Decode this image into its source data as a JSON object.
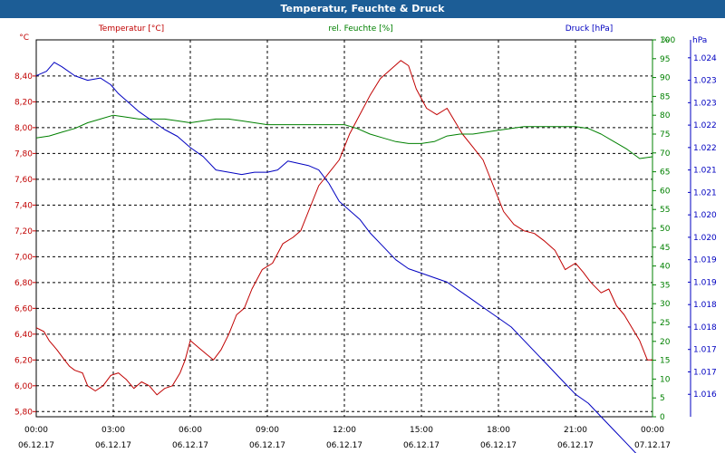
{
  "title": "Temperatur, Feuchte & Druck",
  "chart_data": {
    "type": "line",
    "title": "Temperatur, Feuchte & Druck",
    "grid": true,
    "x_ticks": [
      {
        "time": "00:00",
        "date": "06.12.17"
      },
      {
        "time": "03:00",
        "date": "06.12.17"
      },
      {
        "time": "06:00",
        "date": "06.12.17"
      },
      {
        "time": "09:00",
        "date": "06.12.17"
      },
      {
        "time": "12:00",
        "date": "06.12.17"
      },
      {
        "time": "15:00",
        "date": "06.12.17"
      },
      {
        "time": "18:00",
        "date": "06.12.17"
      },
      {
        "time": "21:00",
        "date": "06.12.17"
      },
      {
        "time": "00:00",
        "date": "07.12.17"
      }
    ],
    "xlim_hours": [
      0,
      24
    ],
    "axes": {
      "temperature": {
        "label": "Temperatur [°C]",
        "unit": "°C",
        "color": "#c00000",
        "ylim": [
          5.76,
          8.68
        ],
        "ticks": [
          "8,40",
          "8,20",
          "8,00",
          "7,80",
          "7,60",
          "7,40",
          "7,20",
          "7,00",
          "6,80",
          "6,60",
          "6,40",
          "6,20",
          "6,00",
          "5,80"
        ],
        "tick_values": [
          8.4,
          8.2,
          8.0,
          7.8,
          7.6,
          7.4,
          7.2,
          7.0,
          6.8,
          6.6,
          6.4,
          6.2,
          6.0,
          5.8
        ]
      },
      "humidity": {
        "label": "rel. Feuchte [%]",
        "unit": "%",
        "color": "#008000",
        "ylim": [
          0,
          100
        ],
        "ticks": [
          "100",
          "95",
          "90",
          "85",
          "80",
          "75",
          "70",
          "65",
          "60",
          "55",
          "50",
          "45",
          "40",
          "35",
          "30",
          "25",
          "20",
          "15",
          "10",
          "5",
          "0"
        ],
        "tick_values": [
          100,
          95,
          90,
          85,
          80,
          75,
          70,
          65,
          60,
          55,
          50,
          45,
          40,
          35,
          30,
          25,
          20,
          15,
          10,
          5,
          0
        ]
      },
      "pressure": {
        "label": "Druck [hPa]",
        "unit": "hPa",
        "color": "#0000c0",
        "ylim": [
          1.016,
          1.0244
        ],
        "ticks": [
          "1.024",
          "1.023",
          "1.023",
          "1.022",
          "1.022",
          "1.021",
          "1.021",
          "1.020",
          "1.020",
          "1.019",
          "1.019",
          "1.018",
          "1.018",
          "1.017",
          "1.017",
          "1.016"
        ],
        "tick_values": [
          1.024,
          1.0235,
          1.023,
          1.0225,
          1.022,
          1.0215,
          1.021,
          1.0205,
          1.02,
          1.0195,
          1.019,
          1.0185,
          1.018,
          1.0175,
          1.017,
          1.0165
        ]
      }
    },
    "series": [
      {
        "name": "Temperatur [°C]",
        "axis": "temperature",
        "color": "#c00000",
        "x": [
          0,
          0.3,
          0.5,
          0.8,
          1.1,
          1.3,
          1.5,
          1.8,
          2.0,
          2.3,
          2.6,
          2.9,
          3.2,
          3.5,
          3.8,
          4.1,
          4.4,
          4.7,
          5.0,
          5.3,
          5.6,
          5.8,
          6.0,
          6.3,
          6.6,
          6.9,
          7.2,
          7.5,
          7.8,
          8.1,
          8.4,
          8.8,
          9.2,
          9.6,
          10.0,
          10.3,
          10.6,
          11.0,
          11.4,
          11.8,
          12.2,
          12.6,
          13.0,
          13.4,
          13.8,
          14.2,
          14.5,
          14.8,
          15.2,
          15.6,
          16.0,
          16.3,
          16.6,
          17.0,
          17.4,
          17.8,
          18.2,
          18.6,
          19.0,
          19.4,
          19.8,
          20.2,
          20.6,
          21.0,
          21.3,
          21.6,
          22.0,
          22.3,
          22.6,
          22.9,
          23.2,
          23.5,
          23.8,
          24.0
        ],
        "y": [
          6.45,
          6.42,
          6.35,
          6.28,
          6.2,
          6.15,
          6.12,
          6.1,
          6.0,
          5.96,
          6.0,
          6.08,
          6.1,
          6.05,
          5.98,
          6.03,
          6.0,
          5.93,
          5.98,
          6.0,
          6.1,
          6.2,
          6.35,
          6.3,
          6.25,
          6.2,
          6.28,
          6.4,
          6.55,
          6.6,
          6.75,
          6.9,
          6.95,
          7.1,
          7.15,
          7.2,
          7.35,
          7.55,
          7.65,
          7.75,
          7.95,
          8.1,
          8.25,
          8.38,
          8.45,
          8.52,
          8.48,
          8.3,
          8.15,
          8.1,
          8.15,
          8.05,
          7.95,
          7.85,
          7.75,
          7.55,
          7.35,
          7.25,
          7.2,
          7.18,
          7.12,
          7.05,
          6.9,
          6.95,
          6.88,
          6.8,
          6.72,
          6.75,
          6.62,
          6.55,
          6.45,
          6.35,
          6.2,
          6.2
        ]
      },
      {
        "name": "rel. Feuchte [%]",
        "axis": "humidity",
        "color": "#008000",
        "x": [
          0,
          0.5,
          1.0,
          1.5,
          2.0,
          2.5,
          3.0,
          3.5,
          4.0,
          4.5,
          5.0,
          5.5,
          6.0,
          6.5,
          7.0,
          7.5,
          8.0,
          8.5,
          9.0,
          9.5,
          10.0,
          10.5,
          11.0,
          11.5,
          12.0,
          12.5,
          13.0,
          13.5,
          14.0,
          14.5,
          15.0,
          15.5,
          16.0,
          16.5,
          17.0,
          17.5,
          18.0,
          18.5,
          19.0,
          19.5,
          20.0,
          20.5,
          21.0,
          21.5,
          22.0,
          22.5,
          23.0,
          23.5,
          24.0
        ],
        "y": [
          74,
          74.5,
          75.5,
          76.5,
          78,
          79,
          80,
          79.5,
          79,
          79,
          79,
          78.5,
          78,
          78.5,
          79,
          79,
          78.5,
          78,
          77.5,
          77.5,
          77.5,
          77.5,
          77.5,
          77.5,
          77.5,
          76.5,
          75,
          74,
          73,
          72.5,
          72.5,
          73,
          74.5,
          75,
          75,
          75.5,
          76,
          76.5,
          77,
          77,
          77,
          77,
          77,
          76.5,
          75,
          73,
          71,
          68.5,
          69
        ]
      },
      {
        "name": "Druck [hPa]",
        "axis": "pressure",
        "color": "#0000c0",
        "x": [
          0,
          0.4,
          0.7,
          1.0,
          1.5,
          2.0,
          2.5,
          2.9,
          3.2,
          3.6,
          4.0,
          4.5,
          5.0,
          5.5,
          6.0,
          6.5,
          7.0,
          7.5,
          8.0,
          8.5,
          9.0,
          9.4,
          9.8,
          10.2,
          10.6,
          11.0,
          11.4,
          11.8,
          12.2,
          12.6,
          13.0,
          13.5,
          14.0,
          14.5,
          15.0,
          15.5,
          16.0,
          16.5,
          17.0,
          17.5,
          18.0,
          18.5,
          19.0,
          19.5,
          20.0,
          20.5,
          21.0,
          21.5,
          22.0,
          22.5,
          23.0,
          23.5,
          24.0
        ],
        "y": [
          1.0236,
          1.0237,
          1.0239,
          1.0238,
          1.0236,
          1.0235,
          1.02355,
          1.0234,
          1.0232,
          1.023,
          1.0228,
          1.0226,
          1.0224,
          1.02225,
          1.022,
          1.0218,
          1.0215,
          1.02145,
          1.0214,
          1.02145,
          1.02145,
          1.0215,
          1.0217,
          1.02165,
          1.0216,
          1.0215,
          1.0212,
          1.0208,
          1.0206,
          1.0204,
          1.0201,
          1.0198,
          1.0195,
          1.0193,
          1.0192,
          1.0191,
          1.019,
          1.0188,
          1.0186,
          1.0184,
          1.0182,
          1.018,
          1.0177,
          1.0174,
          1.0171,
          1.0168,
          1.0165,
          1.0163,
          1.016,
          1.0157,
          1.0154,
          1.0151,
          1.0149
        ]
      }
    ]
  }
}
